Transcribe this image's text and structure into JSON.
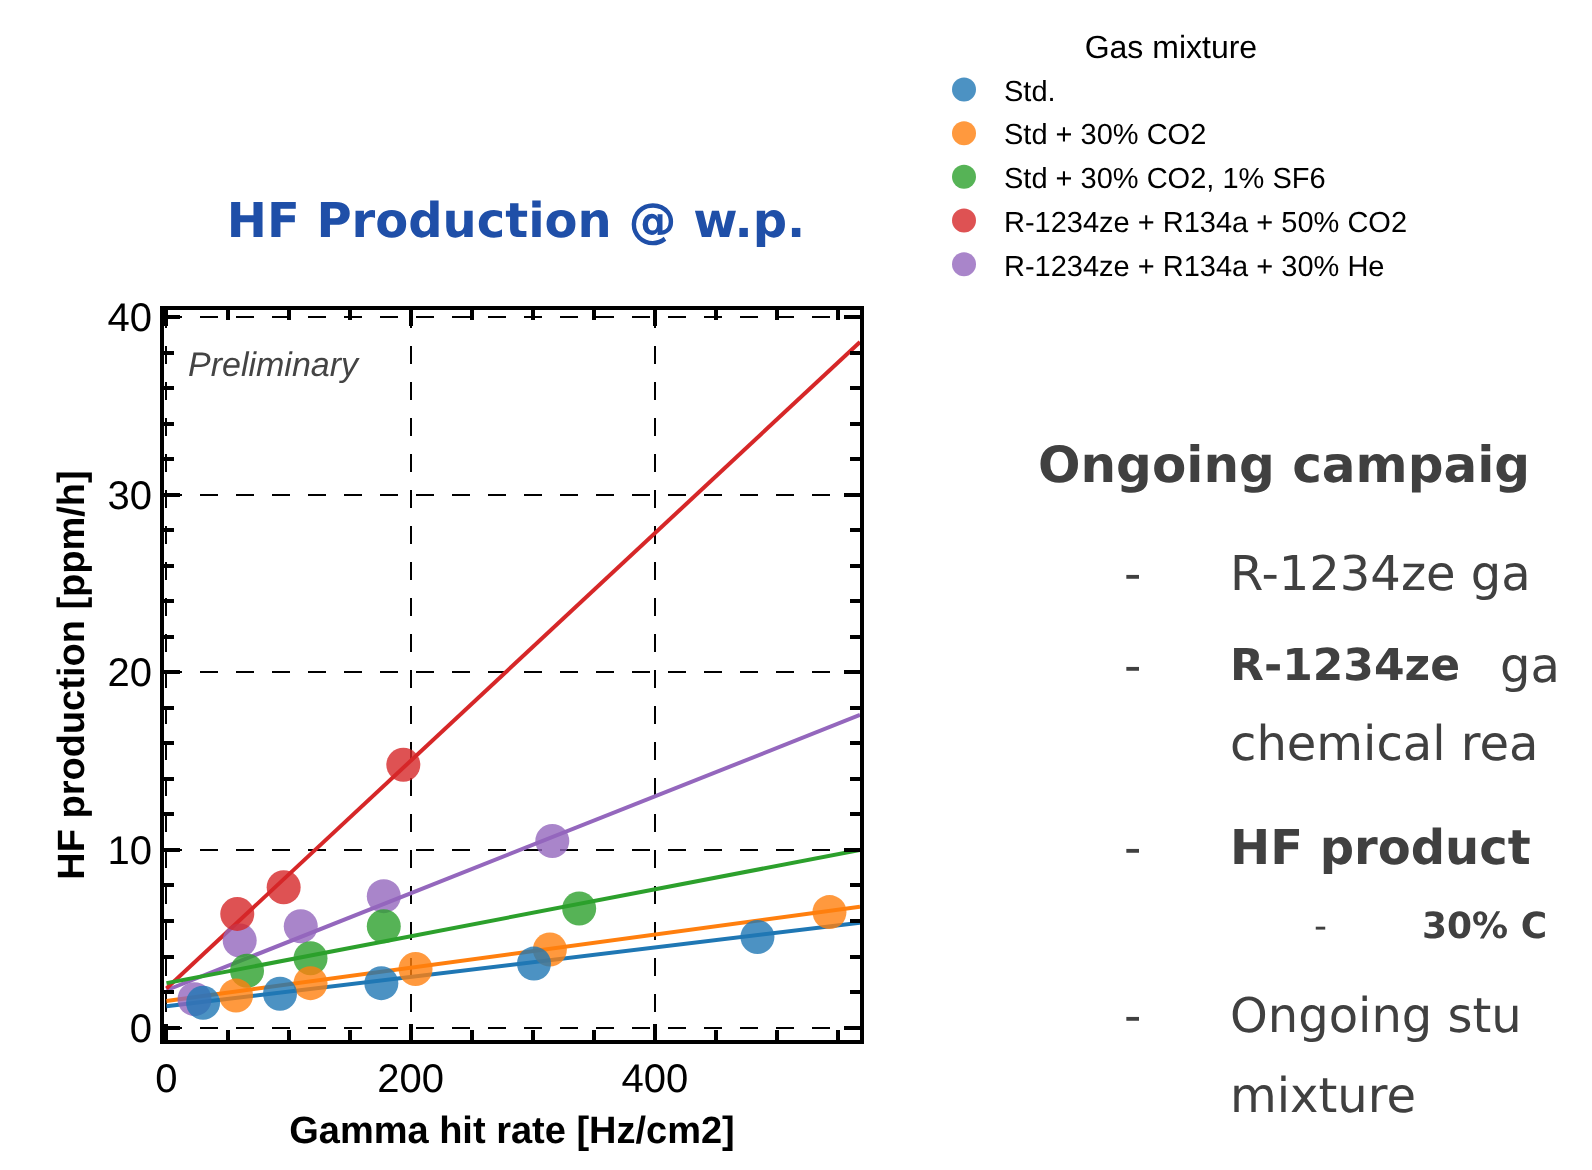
{
  "chart_data": {
    "type": "scatter",
    "title": "HF Production @ w.p.",
    "xlabel": "Gamma hit rate [Hz/cm2]",
    "ylabel": "HF production [ppm/h]",
    "legend_title": "Gas mixture",
    "legend": "top right",
    "grid": true,
    "marker": "circle",
    "xlim": [
      -2,
      568
    ],
    "ylim": [
      -0.7,
      40.4
    ],
    "xticks": [
      0,
      {
        "value": 50,
        "label": null
      },
      {
        "value": 100,
        "label": null
      },
      {
        "value": 150,
        "label": null
      },
      200,
      {
        "value": 250,
        "label": null
      },
      {
        "value": 300,
        "label": null
      },
      {
        "value": 350,
        "label": null
      },
      400,
      {
        "value": 450,
        "label": null
      },
      {
        "value": 500,
        "label": null
      },
      {
        "value": 550,
        "label": null
      }
    ],
    "yticks": [
      0,
      {
        "value": 2,
        "label": null
      },
      {
        "value": 4,
        "label": null
      },
      {
        "value": 6,
        "label": null
      },
      {
        "value": 8,
        "label": null
      },
      10,
      {
        "value": 12,
        "label": null
      },
      {
        "value": 14,
        "label": null
      },
      {
        "value": 16,
        "label": null
      },
      {
        "value": 18,
        "label": null
      },
      20,
      {
        "value": 22,
        "label": null
      },
      {
        "value": 24,
        "label": null
      },
      {
        "value": 26,
        "label": null
      },
      {
        "value": 28,
        "label": null
      },
      30,
      {
        "value": 32,
        "label": null
      },
      {
        "value": 34,
        "label": null
      },
      {
        "value": 36,
        "label": null
      },
      {
        "value": 38,
        "label": null
      },
      40
    ],
    "series": [
      {
        "name": "Std.",
        "color": "#1f77b4",
        "x": [
          30,
          93,
          176,
          301,
          484
        ],
        "values": [
          1.4,
          1.9,
          2.5,
          3.6,
          5.1
        ]
      },
      {
        "name": "Std + 30% CO2",
        "color": "#ff7f0e",
        "x": [
          57,
          118,
          204,
          314,
          543
        ],
        "values": [
          1.8,
          2.5,
          3.3,
          4.4,
          6.5
        ]
      },
      {
        "name": "Std + 30% CO2, 1% SF6",
        "color": "#2ca02c",
        "x": [
          66,
          118,
          178,
          338
        ],
        "values": [
          3.2,
          3.9,
          5.7,
          6.7
        ]
      },
      {
        "name": "R-1234ze + R134a + 50% CO2",
        "color": "#d62728",
        "x": [
          58,
          96,
          194
        ],
        "values": [
          6.4,
          7.9,
          14.8
        ]
      },
      {
        "name": "R-1234ze + R134a + 30% He",
        "color": "#9467bd",
        "x": [
          23,
          60,
          110,
          178,
          316
        ],
        "values": [
          1.6,
          4.9,
          5.7,
          7.4,
          10.5
        ]
      },
      {
        "type": "line",
        "marker": "none",
        "color": "#1f77b4",
        "x": [
          0,
          568
        ],
        "values": [
          1.2,
          5.9
        ]
      },
      {
        "type": "line",
        "marker": "none",
        "color": "#ff7f0e",
        "x": [
          0,
          568
        ],
        "values": [
          1.5,
          6.8
        ]
      },
      {
        "type": "line",
        "marker": "none",
        "color": "#2ca02c",
        "x": [
          0,
          568
        ],
        "values": [
          2.5,
          10.0
        ]
      },
      {
        "type": "line",
        "marker": "none",
        "color": "#d62728",
        "x": [
          0,
          568
        ],
        "values": [
          2.2,
          38.6
        ]
      },
      {
        "type": "line",
        "marker": "none",
        "color": "#9467bd",
        "x": [
          0,
          568
        ],
        "values": [
          2.1,
          17.6
        ]
      }
    ],
    "annotations": [
      "Preliminary",
      "Ongoing campaig",
      "-",
      "R-1234ze ga",
      "-",
      "R-1234ze",
      "ga",
      "chemical rea",
      "-",
      "HF product",
      "-",
      "30% C",
      "-",
      "Ongoing stu",
      "mixture"
    ]
  }
}
